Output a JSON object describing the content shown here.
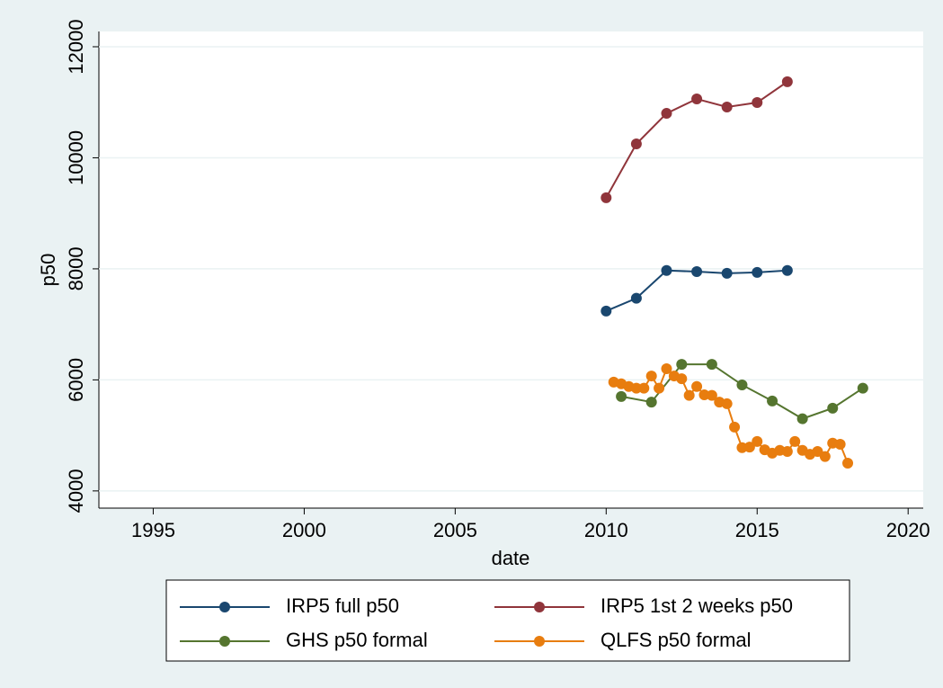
{
  "chart_data": {
    "type": "line",
    "x_label": "date",
    "y_label": "p50",
    "xlim": [
      1993.2,
      2020.5
    ],
    "ylim": [
      3690,
      12275
    ],
    "xticks": [
      1995,
      2000,
      2005,
      2010,
      2015,
      2020
    ],
    "yticks": [
      4000,
      6000,
      8000,
      10000,
      12000
    ],
    "grid": true,
    "legend": "bottom",
    "series": [
      {
        "name": "IRP5 full p50",
        "color": "#1a476f",
        "x": [
          2010,
          2011,
          2012,
          2013,
          2014,
          2015,
          2016
        ],
        "values": [
          7240,
          7470,
          7970,
          7950,
          7920,
          7935,
          7970
        ]
      },
      {
        "name": "IRP5 1st 2 weeks p50",
        "color": "#90353b",
        "x": [
          2010,
          2011,
          2012,
          2013,
          2014,
          2015,
          2016
        ],
        "values": [
          9280,
          10250,
          10800,
          11060,
          10915,
          10995,
          11370
        ]
      },
      {
        "name": "GHS p50 formal",
        "color": "#55752f",
        "x": [
          2010.5,
          2011.5,
          2012.5,
          2013.5,
          2014.5,
          2015.5,
          2016.5,
          2017.5,
          2018.5
        ],
        "values": [
          5700,
          5600,
          6280,
          6280,
          5910,
          5620,
          5300,
          5490,
          5850
        ]
      },
      {
        "name": "QLFS p50 formal",
        "color": "#e87d0f",
        "x": [
          2010.25,
          2010.5,
          2010.75,
          2011,
          2011.25,
          2011.5,
          2011.75,
          2012,
          2012.25,
          2012.5,
          2012.75,
          2013,
          2013.25,
          2013.5,
          2013.75,
          2014,
          2014.25,
          2014.5,
          2014.75,
          2015,
          2015.25,
          2015.5,
          2015.75,
          2016,
          2016.25,
          2016.5,
          2016.75,
          2017,
          2017.25,
          2017.5,
          2017.75,
          2018
        ],
        "values": [
          5960,
          5930,
          5880,
          5850,
          5850,
          6070,
          5850,
          6200,
          6070,
          6020,
          5720,
          5880,
          5730,
          5720,
          5600,
          5570,
          5150,
          4780,
          4790,
          4890,
          4740,
          4680,
          4730,
          4710,
          4890,
          4730,
          4660,
          4710,
          4620,
          4860,
          4840,
          4500
        ]
      }
    ]
  }
}
